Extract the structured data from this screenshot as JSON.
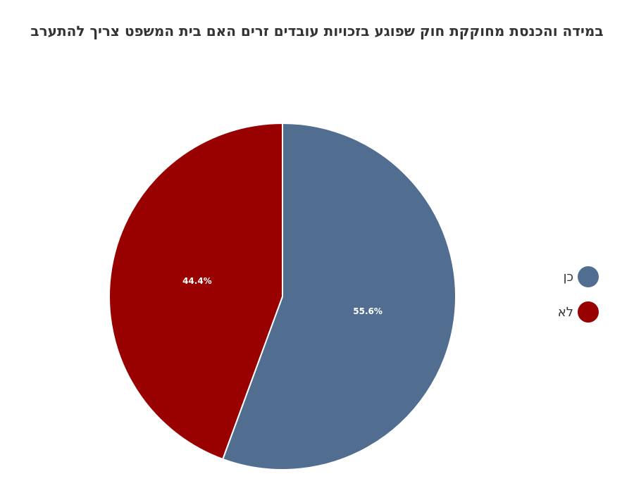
{
  "chart_data": {
    "type": "pie",
    "title": "במידה והכנסת מחוקקת חוק שפוגע בזכויות עובדים זרים האם בית המשפט צריך להתערב",
    "slices": [
      {
        "label": "כן",
        "value": 55.6,
        "display": "55.6%",
        "color": "#516e91"
      },
      {
        "label": "לא",
        "value": 44.4,
        "display": "44.4%",
        "color": "#990000"
      }
    ],
    "legend_position": "right"
  }
}
